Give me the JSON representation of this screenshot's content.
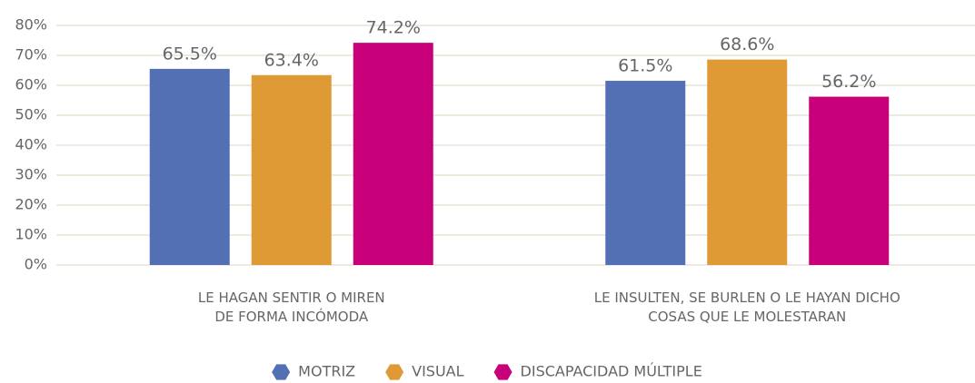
{
  "chart_data": {
    "type": "bar",
    "categories": [
      "LE HAGAN SENTIR O MIREN\nDE FORMA INCÓMODA",
      "LE INSULTEN, SE BURLEN O LE HAYAN DICHO\nCOSAS QUE LE MOLESTARAN"
    ],
    "series": [
      {
        "name": "MOTRIZ",
        "color": "#5470b5",
        "values": [
          65.5,
          61.5
        ],
        "value_labels": [
          "65.5%",
          "61.5%"
        ]
      },
      {
        "name": "VISUAL",
        "color": "#e09a35",
        "values": [
          63.4,
          68.6
        ],
        "value_labels": [
          "63.4%",
          "68.6%"
        ]
      },
      {
        "name": "DISCAPACIDAD MÚLTIPLE",
        "color": "#c8007a",
        "values": [
          74.2,
          56.2
        ],
        "value_labels": [
          "74.2%",
          "56.2%"
        ]
      }
    ],
    "ylim": [
      0,
      80
    ],
    "yticks": [
      {
        "value": 0,
        "label": "0%"
      },
      {
        "value": 10,
        "label": "10%"
      },
      {
        "value": 20,
        "label": "20%"
      },
      {
        "value": 30,
        "label": "30%"
      },
      {
        "value": 40,
        "label": "40%"
      },
      {
        "value": 50,
        "label": "50%"
      },
      {
        "value": 60,
        "label": "60%"
      },
      {
        "value": 70,
        "label": "70%"
      },
      {
        "value": 80,
        "label": "80%"
      }
    ],
    "grid": true,
    "legend": "bottom"
  }
}
